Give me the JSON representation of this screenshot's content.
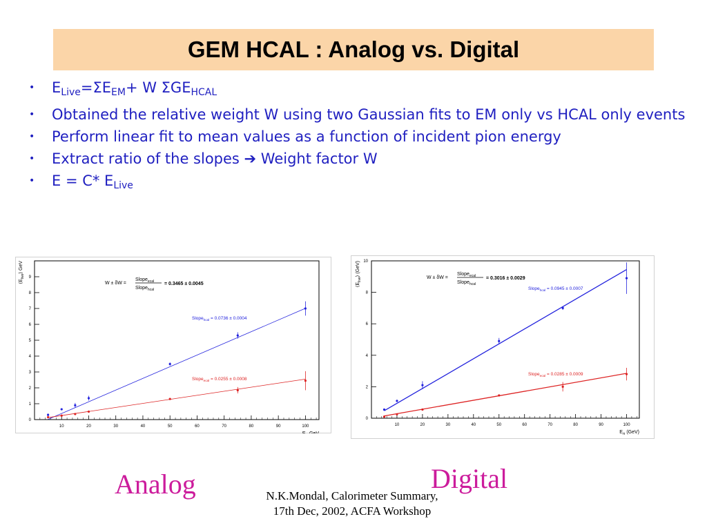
{
  "slide": {
    "title": "GEM HCAL : Analog vs. Digital",
    "bullets": [
      {
        "parts": [
          [
            "E",
            ""
          ],
          [
            "Live",
            "sub"
          ],
          [
            "=ΣE",
            ""
          ],
          [
            "EM",
            "sub"
          ],
          [
            "+ W ΣGE",
            ""
          ],
          [
            "HCAL",
            "sub"
          ]
        ]
      },
      {
        "parts": [
          [
            "Obtained the relative weight W using two Gaussian fits to EM only vs HCAL only events",
            ""
          ]
        ]
      },
      {
        "parts": [
          [
            "Perform linear fit to mean values as a function of incident pion energy",
            ""
          ]
        ]
      },
      {
        "parts": [
          [
            "Extract ratio of the slopes ➔ Weight factor W",
            ""
          ]
        ]
      },
      {
        "parts": [
          [
            "E = C* E",
            ""
          ],
          [
            "Live",
            "sub"
          ]
        ]
      }
    ],
    "captions": {
      "analog": "Analog",
      "digital": "Digital"
    },
    "footer": [
      "N.K.Mondal, Calorimeter Summary,",
      "17th Dec, 2002, ACFA Workshop"
    ]
  },
  "chart_data": [
    {
      "id": "analog",
      "type": "scatter",
      "xlabel": "E",
      "xlabel_sub": "π",
      "xlabel_unit": " GeV",
      "ylabel": "⟨E",
      "ylabel_sub": "live",
      "ylabel_unit": "⟩ GeV",
      "xlim": [
        0,
        105
      ],
      "ylim": [
        0,
        10
      ],
      "xticks": [
        10,
        20,
        30,
        40,
        50,
        60,
        70,
        80,
        90,
        100
      ],
      "yticks": [
        0,
        1,
        2,
        3,
        4,
        5,
        6,
        7,
        8,
        9
      ],
      "weight_label": "W ± δW =",
      "weight_num": "Slope",
      "weight_num_sub": "ecal",
      "weight_den": "Slope",
      "weight_den_sub": "hcal",
      "weight_value": "= 0.3465 ± 0.0045",
      "series": [
        {
          "color": "#2222dd",
          "label_pre": "Slope",
          "label_sub": "hcal",
          "label_post": " = 0.0736 ± 0.0004",
          "fit": [
            -0.35,
            0.0736
          ],
          "points": [
            [
              5,
              0.3,
              0.08
            ],
            [
              10,
              0.65,
              0.06
            ],
            [
              15,
              0.9,
              0.15
            ],
            [
              20,
              1.35,
              0.15
            ],
            [
              50,
              3.5,
              0.1
            ],
            [
              75,
              5.3,
              0.2
            ],
            [
              100,
              7.0,
              0.45
            ]
          ]
        },
        {
          "color": "#dd2222",
          "label_pre": "Slope",
          "label_sub": "ecal",
          "label_post": " = 0.0255 ± 0.0008",
          "fit": [
            0.0,
            0.0255
          ],
          "points": [
            [
              5,
              0.15,
              0.03
            ],
            [
              10,
              0.25,
              0.03
            ],
            [
              15,
              0.35,
              0.05
            ],
            [
              20,
              0.5,
              0.05
            ],
            [
              50,
              1.3,
              0.05
            ],
            [
              75,
              1.85,
              0.2
            ],
            [
              100,
              2.45,
              0.6
            ]
          ]
        }
      ]
    },
    {
      "id": "digital",
      "type": "scatter",
      "xlabel": "E",
      "xlabel_sub": "π",
      "xlabel_unit": " (GeV)",
      "ylabel": "⟨E",
      "ylabel_sub": "live",
      "ylabel_unit": "⟩ (GeV)",
      "xlim": [
        0,
        105
      ],
      "ylim": [
        0,
        10
      ],
      "xticks": [
        10,
        20,
        30,
        40,
        50,
        60,
        70,
        80,
        90,
        100
      ],
      "yticks": [
        0,
        2,
        4,
        6,
        8,
        10
      ],
      "weight_label": "W ± δW =",
      "weight_num": "Slope",
      "weight_num_sub": "ecal",
      "weight_den": "Slope",
      "weight_den_sub": "hcal",
      "weight_value": "= 0.3016 ± 0.0029",
      "series": [
        {
          "color": "#2222dd",
          "label_pre": "Slope",
          "label_sub": "hcal",
          "label_post": " = 0.0945 ± 0.0007",
          "fit": [
            0.0,
            0.0945
          ],
          "points": [
            [
              5,
              0.55,
              0.05
            ],
            [
              10,
              1.1,
              0.08
            ],
            [
              20,
              2.1,
              0.25
            ],
            [
              50,
              4.9,
              0.2
            ],
            [
              75,
              7.0,
              0.12
            ],
            [
              100,
              8.9,
              1.0
            ]
          ]
        },
        {
          "color": "#dd2222",
          "label_pre": "Slope",
          "label_sub": "ecal",
          "label_post": " = 0.0285 ± 0.0009",
          "fit": [
            0.0,
            0.0285
          ],
          "points": [
            [
              5,
              0.1,
              0.03
            ],
            [
              10,
              0.25,
              0.04
            ],
            [
              20,
              0.55,
              0.05
            ],
            [
              50,
              1.45,
              0.05
            ],
            [
              75,
              2.0,
              0.3
            ],
            [
              100,
              2.8,
              0.4
            ]
          ]
        }
      ]
    }
  ]
}
